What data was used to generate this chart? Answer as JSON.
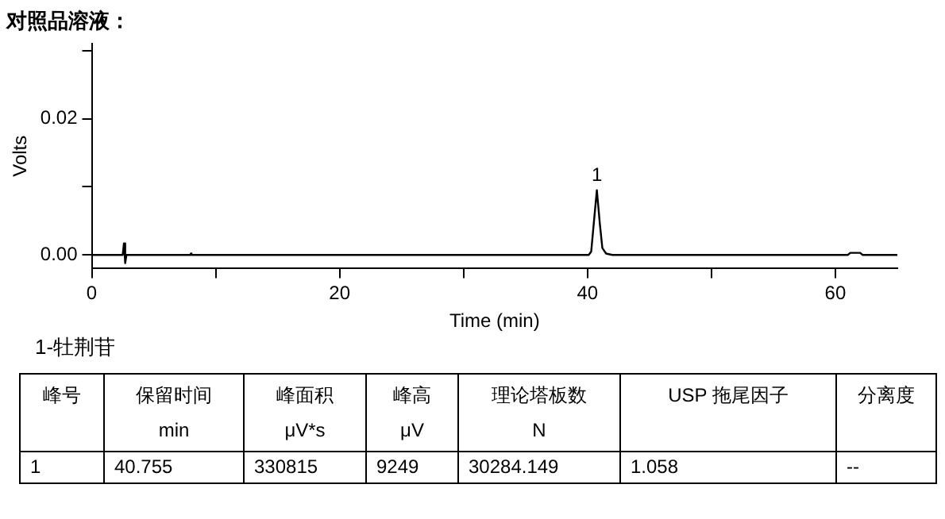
{
  "chart_data": {
    "type": "line",
    "title": "对照品溶液：",
    "xlabel": "Time (min)",
    "ylabel": "Volts",
    "x": [
      0,
      2.5,
      2.6,
      2.7,
      2.8,
      7.95,
      8.0,
      8.05,
      40.1,
      40.3,
      40.5,
      40.755,
      41.0,
      41.2,
      41.5,
      42,
      61,
      61.2,
      62,
      62.2,
      65
    ],
    "series": [
      {
        "color": "#000000",
        "values": [
          0,
          0,
          0.0017,
          -0.0012,
          0,
          0,
          0.0002,
          0,
          0,
          0.0005,
          0.0045,
          0.0095,
          0.0045,
          0.001,
          0.0002,
          0,
          0,
          0.0003,
          0.0003,
          0,
          0
        ]
      }
    ],
    "xlim": [
      0,
      65
    ],
    "xticks": [
      0,
      {
        "value": 10,
        "label": null
      },
      20,
      {
        "value": 30,
        "label": null
      },
      40,
      {
        "value": 50,
        "label": null
      },
      60
    ],
    "ylim": [
      -0.002,
      0.031
    ],
    "yticks": [
      {
        "value": 0,
        "label": "0.00"
      },
      {
        "value": 0.01,
        "label": null
      },
      {
        "value": 0.02,
        "label": "0.02"
      },
      {
        "value": 0.03,
        "label": null
      }
    ],
    "grid": false,
    "legend": false,
    "marker": "none",
    "line_style": "solid",
    "annotations": [
      {
        "text": "1",
        "x": 40.755,
        "y": 0.0095
      },
      "1-牡荆苷",
      "峰号",
      "保留时间\nmin",
      "峰面积\nμV*s",
      "峰高\nμV",
      "理论塔板数\nN",
      "USP 拖尾因子",
      "分离度",
      "1",
      "40.755",
      "330815",
      "9249",
      "30284.149",
      "1.058",
      "--"
    ]
  }
}
